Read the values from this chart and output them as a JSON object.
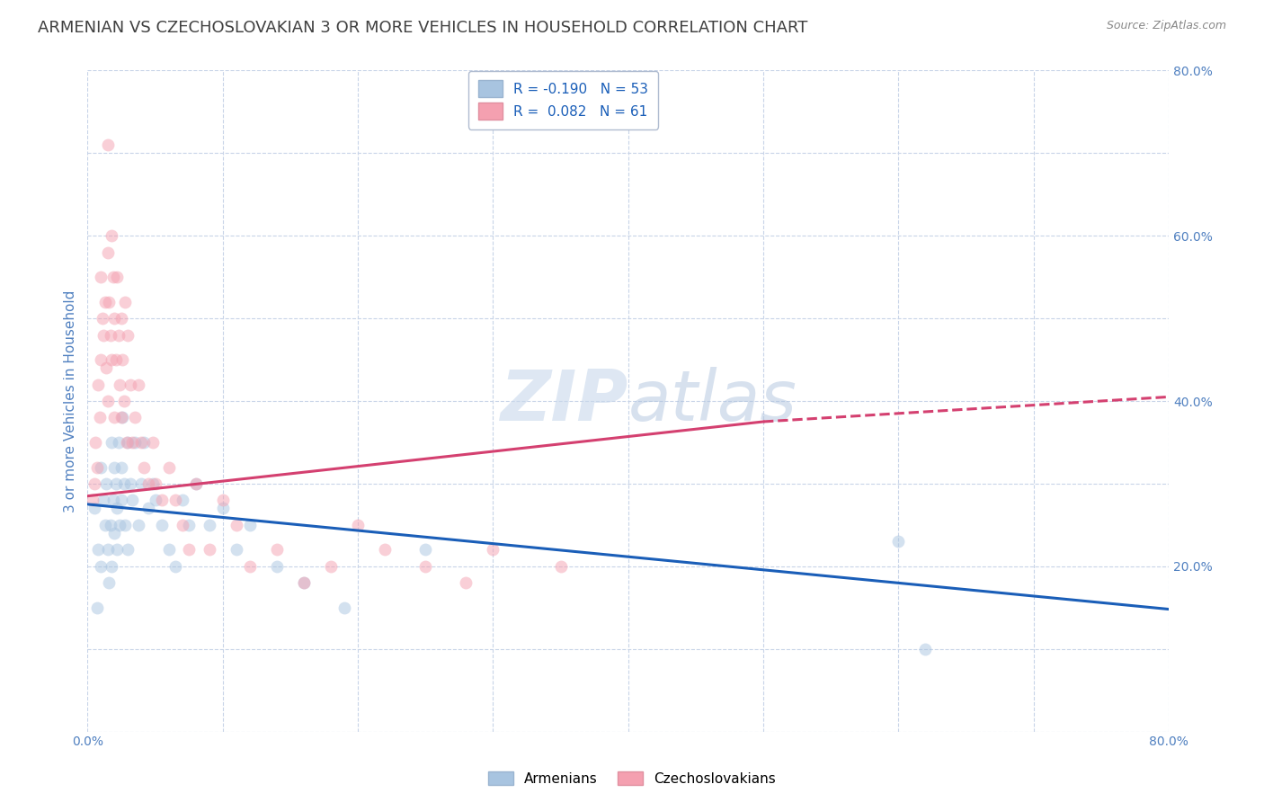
{
  "title": "ARMENIAN VS CZECHOSLOVAKIAN 3 OR MORE VEHICLES IN HOUSEHOLD CORRELATION CHART",
  "source": "Source: ZipAtlas.com",
  "ylabel": "3 or more Vehicles in Household",
  "xlim": [
    0.0,
    0.8
  ],
  "ylim": [
    0.0,
    0.8
  ],
  "xticks": [
    0.0,
    0.1,
    0.2,
    0.3,
    0.4,
    0.5,
    0.6,
    0.7,
    0.8
  ],
  "yticks": [
    0.0,
    0.1,
    0.2,
    0.3,
    0.4,
    0.5,
    0.6,
    0.7,
    0.8
  ],
  "armenian_color": "#a8c4e0",
  "czechoslovakian_color": "#f4a0b0",
  "armenian_R": -0.19,
  "armenian_N": 53,
  "czechoslovakian_R": 0.082,
  "czechoslovakian_N": 61,
  "trendline_armenian_color": "#1a5eb8",
  "trendline_czechoslovakian_color": "#d44070",
  "legend_label_armenian": "Armenians",
  "legend_label_czechoslovakian": "Czechoslovakians",
  "armenian_x": [
    0.005,
    0.007,
    0.008,
    0.01,
    0.01,
    0.012,
    0.013,
    0.014,
    0.015,
    0.016,
    0.017,
    0.018,
    0.018,
    0.019,
    0.02,
    0.02,
    0.021,
    0.022,
    0.022,
    0.023,
    0.024,
    0.025,
    0.025,
    0.026,
    0.027,
    0.028,
    0.03,
    0.03,
    0.032,
    0.033,
    0.035,
    0.038,
    0.04,
    0.042,
    0.045,
    0.048,
    0.05,
    0.055,
    0.06,
    0.065,
    0.07,
    0.075,
    0.08,
    0.09,
    0.1,
    0.11,
    0.12,
    0.14,
    0.16,
    0.19,
    0.25,
    0.6,
    0.62
  ],
  "armenian_y": [
    0.27,
    0.15,
    0.22,
    0.32,
    0.2,
    0.28,
    0.25,
    0.3,
    0.22,
    0.18,
    0.25,
    0.35,
    0.2,
    0.28,
    0.32,
    0.24,
    0.3,
    0.27,
    0.22,
    0.35,
    0.25,
    0.32,
    0.28,
    0.38,
    0.3,
    0.25,
    0.35,
    0.22,
    0.3,
    0.28,
    0.35,
    0.25,
    0.3,
    0.35,
    0.27,
    0.3,
    0.28,
    0.25,
    0.22,
    0.2,
    0.28,
    0.25,
    0.3,
    0.25,
    0.27,
    0.22,
    0.25,
    0.2,
    0.18,
    0.15,
    0.22,
    0.23,
    0.1
  ],
  "czechoslovakian_x": [
    0.004,
    0.005,
    0.006,
    0.007,
    0.008,
    0.009,
    0.01,
    0.01,
    0.011,
    0.012,
    0.013,
    0.014,
    0.015,
    0.015,
    0.016,
    0.017,
    0.018,
    0.018,
    0.019,
    0.02,
    0.02,
    0.021,
    0.022,
    0.023,
    0.024,
    0.025,
    0.025,
    0.026,
    0.027,
    0.028,
    0.029,
    0.03,
    0.032,
    0.033,
    0.035,
    0.038,
    0.04,
    0.042,
    0.045,
    0.048,
    0.05,
    0.055,
    0.06,
    0.065,
    0.07,
    0.075,
    0.08,
    0.09,
    0.1,
    0.11,
    0.12,
    0.14,
    0.16,
    0.18,
    0.2,
    0.22,
    0.25,
    0.28,
    0.3,
    0.35,
    0.015
  ],
  "czechoslovakian_y": [
    0.28,
    0.3,
    0.35,
    0.32,
    0.42,
    0.38,
    0.45,
    0.55,
    0.5,
    0.48,
    0.52,
    0.44,
    0.4,
    0.58,
    0.52,
    0.48,
    0.45,
    0.6,
    0.55,
    0.5,
    0.38,
    0.45,
    0.55,
    0.48,
    0.42,
    0.5,
    0.38,
    0.45,
    0.4,
    0.52,
    0.35,
    0.48,
    0.42,
    0.35,
    0.38,
    0.42,
    0.35,
    0.32,
    0.3,
    0.35,
    0.3,
    0.28,
    0.32,
    0.28,
    0.25,
    0.22,
    0.3,
    0.22,
    0.28,
    0.25,
    0.2,
    0.22,
    0.18,
    0.2,
    0.25,
    0.22,
    0.2,
    0.18,
    0.22,
    0.2,
    0.71
  ],
  "grid_color": "#c8d4e8",
  "background_color": "#ffffff",
  "title_color": "#404040",
  "axis_label_color": "#5080c0",
  "tick_label_color": "#5080c0",
  "title_fontsize": 13,
  "axis_label_fontsize": 11,
  "tick_fontsize": 10,
  "dot_size": 100,
  "dot_alpha": 0.5,
  "arm_trend_start_x": 0.0,
  "arm_trend_end_x": 0.8,
  "arm_trend_start_y": 0.275,
  "arm_trend_end_y": 0.148,
  "czk_trend_start_x": 0.0,
  "czk_trend_solid_end_x": 0.5,
  "czk_trend_dash_end_x": 0.8,
  "czk_trend_start_y": 0.285,
  "czk_trend_solid_end_y": 0.375,
  "czk_trend_dash_end_y": 0.405
}
